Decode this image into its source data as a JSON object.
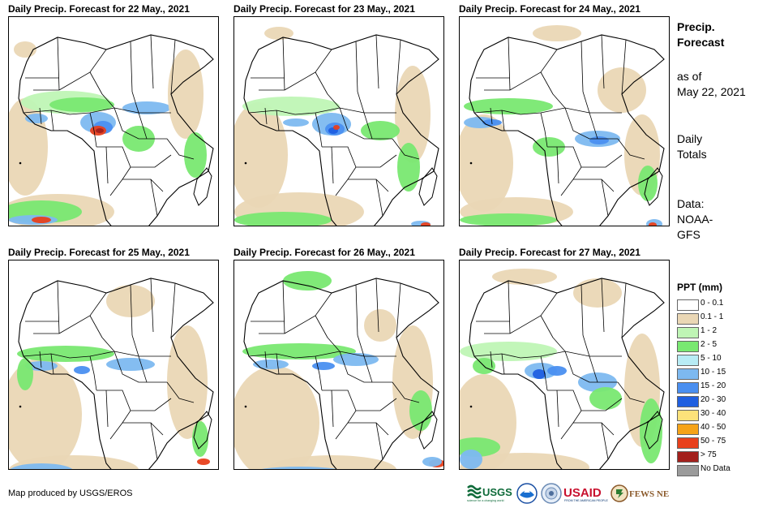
{
  "panels": [
    {
      "title": "Daily Precip. Forecast for 22 May., 2021"
    },
    {
      "title": "Daily Precip. Forecast for 23 May., 2021"
    },
    {
      "title": "Daily Precip. Forecast for 24 May., 2021"
    },
    {
      "title": "Daily Precip. Forecast for 25 May., 2021"
    },
    {
      "title": "Daily Precip. Forecast for 26 May., 2021"
    },
    {
      "title": "Daily Precip. Forecast for 27 May., 2021"
    }
  ],
  "side": {
    "title1": "Precip.",
    "title2": "Forecast",
    "asof1": "as of",
    "asof2": "May 22, 2021",
    "daily1": "Daily",
    "daily2": "Totals",
    "data1": "Data:",
    "data2": "NOAA-",
    "data3": "GFS"
  },
  "legend": {
    "title": "PPT (mm)",
    "items": [
      {
        "label": "0 - 0.1",
        "color": "#ffffff"
      },
      {
        "label": "0.1 - 1",
        "color": "#ead7b5"
      },
      {
        "label": "1 - 2",
        "color": "#bff5b5"
      },
      {
        "label": "2 - 5",
        "color": "#79e871"
      },
      {
        "label": "5 - 10",
        "color": "#b8ecf5"
      },
      {
        "label": "10 - 15",
        "color": "#7db9f0"
      },
      {
        "label": "15 - 20",
        "color": "#4a8ff0"
      },
      {
        "label": "20 - 30",
        "color": "#1f5fe0"
      },
      {
        "label": "30 - 40",
        "color": "#fde27a"
      },
      {
        "label": "40 - 50",
        "color": "#f5a318"
      },
      {
        "label": "50 - 75",
        "color": "#e8401c"
      },
      {
        "label": "> 75",
        "color": "#a3201c"
      },
      {
        "label": "No Data",
        "color": "#9b9b9b"
      }
    ]
  },
  "credit": "Map produced by USGS/EROS",
  "logos": {
    "usgs": "USGS",
    "usgs_tagline": "science for a changing world",
    "usaid": "USAID",
    "usaid_tagline": "FROM THE AMERICAN PEOPLE",
    "fewsnet": "FEWS NET"
  }
}
